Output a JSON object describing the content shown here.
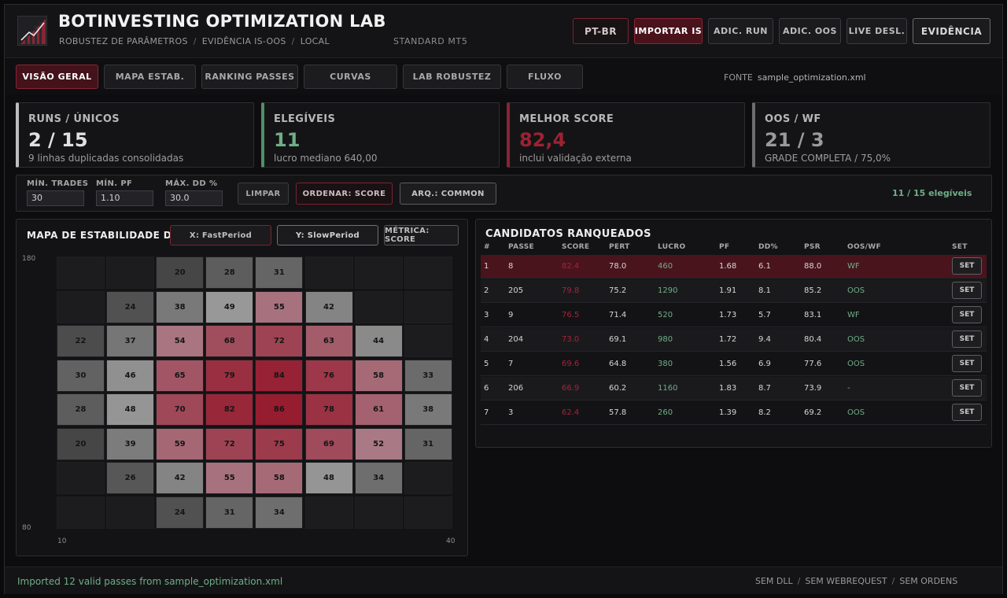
{
  "header": {
    "title": "BOTINVESTING OPTIMIZATION LAB",
    "crumbs": [
      "ROBUSTEZ DE PARÂMETROS",
      "EVIDÊNCIA IS-OOS",
      "LOCAL"
    ],
    "separator": "/",
    "platform": "STANDARD MT5",
    "buttons": {
      "lang": "PT-BR",
      "import_is": "IMPORTAR IS",
      "add_run": "ADIC. RUN",
      "add_oos": "ADIC. OOS",
      "live": "LIVE DESL.",
      "evidence": "EVIDÊNCIA"
    }
  },
  "tabs": [
    "VISÃO GERAL",
    "MAPA ESTAB.",
    "RANKING PASSES",
    "CURVAS",
    "LAB ROBUSTEZ",
    "FLUXO"
  ],
  "active_tab": "VISÃO GERAL",
  "source": {
    "label": "FONTE",
    "file": "sample_optimization.xml"
  },
  "kpis": [
    {
      "label": "RUNS / ÚNICOS",
      "value": "2 / 15",
      "sub": "9 linhas duplicadas consolidadas",
      "accent": "#bdbdbd",
      "value_color": "#e0e0e0"
    },
    {
      "label": "ELEGÍVEIS",
      "value": "11",
      "sub": "lucro mediano 640,00",
      "accent": "#4f8f68",
      "value_color": "#6fae86"
    },
    {
      "label": "MELHOR SCORE",
      "value": "82,4",
      "sub": "inclui validação externa",
      "accent": "#8a2434",
      "value_color": "#9c2233"
    },
    {
      "label": "OOS / WF",
      "value": "21 / 3",
      "sub": "GRADE COMPLETA / 75,0%",
      "accent": "#6d6d70",
      "value_color": "#9a9a9a"
    }
  ],
  "filters": {
    "min_trades": {
      "label": "MÍN. TRADES",
      "value": "30"
    },
    "min_pf": {
      "label": "MÍN. PF",
      "value": "1.10"
    },
    "max_dd": {
      "label": "MÁX. DD %",
      "value": "30.0"
    },
    "clear": "LIMPAR",
    "sort": "ORDENAR: SCORE",
    "arq": "ARQ.: COMMON",
    "eligible": "11 / 15 elegíveis"
  },
  "heatmap": {
    "title": "MAPA DE ESTABILIDADE DE PARÂMETROS",
    "x_param": "X: FastPeriod",
    "y_param": "Y: SlowPeriod",
    "metric": "MÉTRICA: SCORE",
    "y_top": "180",
    "y_bottom": "80",
    "x_left": "10",
    "x_right": "40",
    "rows": [
      [
        null,
        null,
        20,
        28,
        31,
        null,
        null,
        null
      ],
      [
        null,
        24,
        38,
        49,
        55,
        42,
        null,
        null
      ],
      [
        22,
        37,
        54,
        68,
        72,
        63,
        44,
        null
      ],
      [
        30,
        46,
        65,
        79,
        84,
        76,
        58,
        33
      ],
      [
        28,
        48,
        70,
        82,
        86,
        78,
        61,
        38
      ],
      [
        20,
        39,
        59,
        72,
        75,
        69,
        52,
        31
      ],
      [
        null,
        26,
        42,
        55,
        58,
        48,
        34,
        null
      ],
      [
        null,
        null,
        24,
        31,
        34,
        null,
        null,
        null
      ]
    ]
  },
  "ranking": {
    "title": "CANDIDATOS RANQUEADOS",
    "columns": [
      "#",
      "PASSE",
      "SCORE",
      "PERT",
      "LUCRO",
      "PF",
      "DD%",
      "PSR",
      "OOS/WF",
      "SET"
    ],
    "set_label": "SET",
    "rows": [
      [
        "1",
        "8",
        "82.4",
        "78.0",
        "460",
        "1.68",
        "6.1",
        "88.0",
        "WF"
      ],
      [
        "2",
        "205",
        "79.8",
        "75.2",
        "1290",
        "1.91",
        "8.1",
        "85.2",
        "OOS"
      ],
      [
        "3",
        "9",
        "76.5",
        "71.4",
        "520",
        "1.73",
        "5.7",
        "83.1",
        "WF"
      ],
      [
        "4",
        "204",
        "73.0",
        "69.1",
        "980",
        "1.72",
        "9.4",
        "80.4",
        "OOS"
      ],
      [
        "5",
        "7",
        "69.6",
        "64.8",
        "380",
        "1.56",
        "6.9",
        "77.6",
        "OOS"
      ],
      [
        "6",
        "206",
        "66.9",
        "60.2",
        "1160",
        "1.83",
        "8.7",
        "73.9",
        "-"
      ],
      [
        "7",
        "3",
        "62.4",
        "57.8",
        "260",
        "1.39",
        "8.2",
        "69.2",
        "OOS"
      ]
    ]
  },
  "footer": {
    "status": "Imported 12 valid passes from sample_optimization.xml",
    "flags": [
      "SEM DLL",
      "SEM WEBREQUEST",
      "SEM ORDENS"
    ]
  }
}
